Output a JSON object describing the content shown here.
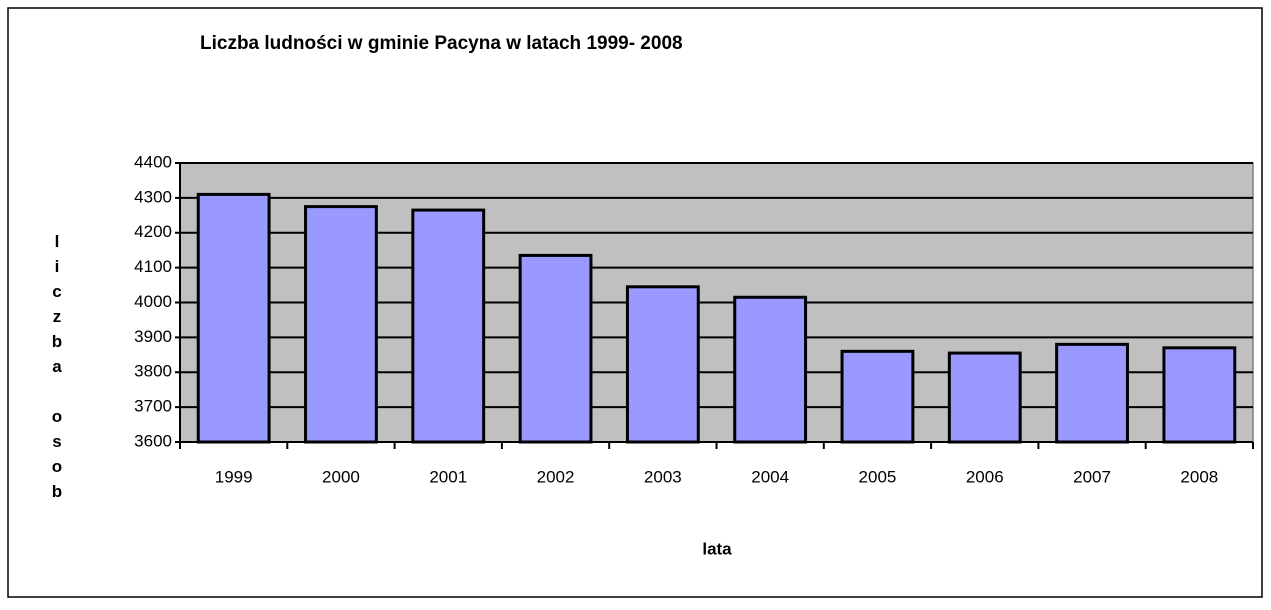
{
  "chart_data": {
    "type": "bar",
    "title": "Liczba ludności w gminie Pacyna w latach 1999- 2008",
    "x_label": "lata",
    "y_label": "liczba osob",
    "categories": [
      "1999",
      "2000",
      "2001",
      "2002",
      "2003",
      "2004",
      "2005",
      "2006",
      "2007",
      "2008"
    ],
    "values": [
      4310,
      4275,
      4265,
      4135,
      4045,
      4015,
      3860,
      3855,
      3880,
      3870
    ],
    "color": "#9999ff",
    "ylim": [
      3600,
      4400
    ],
    "yticks": [
      3600,
      3700,
      3800,
      3900,
      4000,
      4100,
      4200,
      4300,
      4400
    ],
    "grid": true
  }
}
